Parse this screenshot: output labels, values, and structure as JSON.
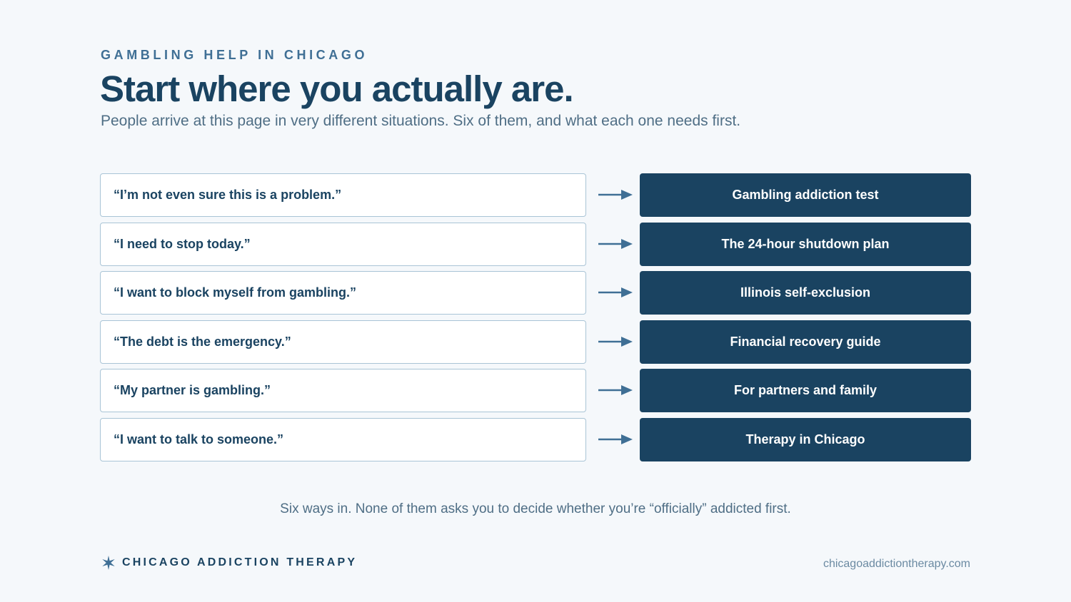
{
  "header": {
    "eyebrow": "GAMBLING HELP IN CHICAGO",
    "title": "Start where you actually are.",
    "subtitle": "People arrive at this page in very different situations. Six of them, and what each one needs first."
  },
  "rows": [
    {
      "quote": "“I’m not even sure this is a problem.”",
      "target": "Gambling addiction test"
    },
    {
      "quote": "“I need to stop today.”",
      "target": "The 24-hour shutdown plan"
    },
    {
      "quote": "“I want to block myself from gambling.”",
      "target": "Illinois self-exclusion"
    },
    {
      "quote": "“The debt is the emergency.”",
      "target": "Financial recovery guide"
    },
    {
      "quote": "“My partner is gambling.”",
      "target": "For partners and family"
    },
    {
      "quote": "“I want to talk to someone.”",
      "target": "Therapy in Chicago"
    }
  ],
  "tagline": "Six ways in. None of them asks you to decide whether you’re “officially” addicted first.",
  "footer": {
    "brand": "CHICAGO ADDICTION THERAPY",
    "brand_icon": "chicago-star-icon",
    "url": "chicagoaddictiontherapy.com"
  },
  "colors": {
    "navy": "#1a4361",
    "accent": "#3f6f95",
    "muted": "#4f6e85",
    "background": "#f5f8fb",
    "border": "#a9c4d6"
  }
}
